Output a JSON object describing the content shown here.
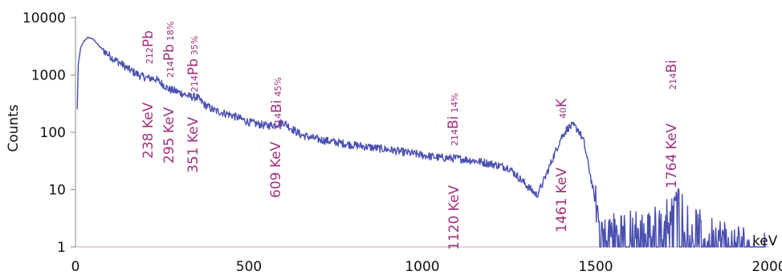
{
  "chart_data": {
    "type": "line",
    "title": "",
    "xlabel": "keV",
    "ylabel": "Counts",
    "xlim": [
      0,
      2000
    ],
    "ylim": [
      1,
      10000
    ],
    "yscale": "log",
    "grid": false,
    "x_ticks": [
      "0",
      "500",
      "1000",
      "1500",
      "2000"
    ],
    "y_ticks": [
      "1",
      "10",
      "100",
      "1000",
      "10000"
    ],
    "colors": {
      "series": "#4a4fb0",
      "annotation": "#a0307f"
    },
    "series": [
      {
        "name": "",
        "x": [
          5,
          8,
          15,
          25,
          35,
          45,
          55,
          70,
          90,
          110,
          130,
          150,
          170,
          190,
          210,
          230,
          250,
          270,
          290,
          310,
          330,
          350,
          370,
          400,
          450,
          500,
          550,
          575,
          600,
          620,
          650,
          700,
          800,
          900,
          1000,
          1050,
          1100,
          1150,
          1200,
          1250,
          1300,
          1330,
          1345,
          1360,
          1380,
          1400,
          1420,
          1435,
          1450,
          1465,
          1480,
          1495,
          1510,
          1525,
          1560,
          1600,
          1650,
          1700,
          1740,
          1760,
          1800,
          1900,
          1990
        ],
        "y": [
          250,
          1500,
          3000,
          3900,
          4500,
          4400,
          4000,
          3100,
          2400,
          1900,
          1600,
          1300,
          1100,
          950,
          880,
          860,
          700,
          560,
          520,
          470,
          420,
          410,
          310,
          240,
          200,
          150,
          130,
          135,
          150,
          120,
          90,
          75,
          60,
          50,
          40,
          36,
          35,
          32,
          28,
          24,
          12,
          8,
          12,
          20,
          40,
          80,
          120,
          130,
          110,
          70,
          25,
          8,
          3,
          1.5,
          2,
          2,
          2,
          3,
          10,
          3,
          2,
          1.2,
          1
        ]
      }
    ],
    "annotations": [
      {
        "text": "238 KeV",
        "nuclide": "Pb",
        "mass": "212",
        "pct": "",
        "x": 238
      },
      {
        "text": "295 KeV",
        "nuclide": "Pb",
        "mass": "214",
        "pct": "18%",
        "x": 295
      },
      {
        "text": "351 KeV",
        "nuclide": "Pb",
        "mass": "214",
        "pct": "35%",
        "x": 351
      },
      {
        "text": "609 KeV",
        "nuclide": "Bi",
        "mass": "214",
        "pct": "45%",
        "x": 609
      },
      {
        "text": "1120 KeV",
        "nuclide": "Bi",
        "mass": "214",
        "pct": "14%",
        "x": 1120
      },
      {
        "text": "1461 KeV",
        "nuclide": "K",
        "mass": "40",
        "pct": "",
        "x": 1461
      },
      {
        "text": "1764 KeV",
        "nuclide": "Bi",
        "mass": "214",
        "pct": "",
        "x": 1764
      }
    ]
  }
}
